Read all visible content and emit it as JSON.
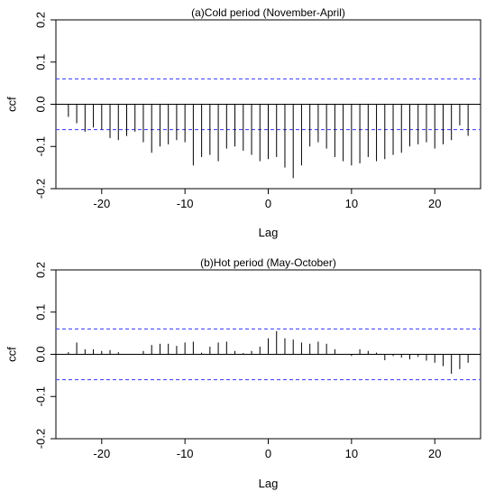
{
  "chart_data": [
    {
      "type": "bar",
      "title": "(a)Cold period (November-April)",
      "xlabel": "Lag",
      "ylabel": "ccf",
      "xlim": [
        -25.5,
        25.5
      ],
      "ylim": [
        -0.2,
        0.2
      ],
      "xticks": [
        -20,
        -10,
        0,
        10,
        20
      ],
      "yticks": [
        -0.2,
        -0.1,
        0.0,
        0.1,
        0.2
      ],
      "xtick_labels": [
        "-20",
        "-10",
        "0",
        "10",
        "20"
      ],
      "ytick_labels": [
        "-0.2",
        "-0.1",
        "0.0",
        "0.1",
        "0.2"
      ],
      "confidence_band": [
        -0.06,
        0.06
      ],
      "band_color": "#4c4cff",
      "lags": [
        -24,
        -23,
        -22,
        -21,
        -20,
        -19,
        -18,
        -17,
        -16,
        -15,
        -14,
        -13,
        -12,
        -11,
        -10,
        -9,
        -8,
        -7,
        -6,
        -5,
        -4,
        -3,
        -2,
        -1,
        0,
        1,
        2,
        3,
        4,
        5,
        6,
        7,
        8,
        9,
        10,
        11,
        12,
        13,
        14,
        15,
        16,
        17,
        18,
        19,
        20,
        21,
        22,
        23,
        24
      ],
      "values": [
        -0.03,
        -0.045,
        -0.065,
        -0.055,
        -0.06,
        -0.08,
        -0.085,
        -0.075,
        -0.065,
        -0.09,
        -0.115,
        -0.1,
        -0.095,
        -0.085,
        -0.09,
        -0.145,
        -0.125,
        -0.12,
        -0.135,
        -0.105,
        -0.1,
        -0.11,
        -0.12,
        -0.135,
        -0.13,
        -0.125,
        -0.15,
        -0.175,
        -0.145,
        -0.1,
        -0.09,
        -0.105,
        -0.125,
        -0.135,
        -0.145,
        -0.14,
        -0.125,
        -0.135,
        -0.13,
        -0.12,
        -0.115,
        -0.1,
        -0.095,
        -0.09,
        -0.105,
        -0.095,
        -0.085,
        -0.05,
        -0.075
      ]
    },
    {
      "type": "bar",
      "title": "(b)Hot period (May-October)",
      "xlabel": "Lag",
      "ylabel": "ccf",
      "xlim": [
        -25.5,
        25.5
      ],
      "ylim": [
        -0.2,
        0.2
      ],
      "xticks": [
        -20,
        -10,
        0,
        10,
        20
      ],
      "yticks": [
        -0.2,
        -0.1,
        0.0,
        0.1,
        0.2
      ],
      "xtick_labels": [
        "-20",
        "-10",
        "0",
        "10",
        "20"
      ],
      "ytick_labels": [
        "-0.2",
        "-0.1",
        "0.0",
        "0.1",
        "0.2"
      ],
      "confidence_band": [
        -0.06,
        0.06
      ],
      "band_color": "#4c4cff",
      "lags": [
        -24,
        -23,
        -22,
        -21,
        -20,
        -19,
        -18,
        -17,
        -16,
        -15,
        -14,
        -13,
        -12,
        -11,
        -10,
        -9,
        -8,
        -7,
        -6,
        -5,
        -4,
        -3,
        -2,
        -1,
        0,
        1,
        2,
        3,
        4,
        5,
        6,
        7,
        8,
        9,
        10,
        11,
        12,
        13,
        14,
        15,
        16,
        17,
        18,
        19,
        20,
        21,
        22,
        23,
        24
      ],
      "values": [
        0.005,
        0.028,
        0.012,
        0.012,
        0.008,
        0.01,
        0.005,
        0.0,
        0.0,
        0.008,
        0.022,
        0.025,
        0.025,
        0.02,
        0.028,
        0.03,
        0.004,
        0.018,
        0.028,
        0.03,
        0.008,
        0.003,
        0.008,
        0.018,
        0.038,
        0.055,
        0.038,
        0.035,
        0.028,
        0.025,
        0.03,
        0.025,
        0.012,
        0.0,
        -0.004,
        0.012,
        0.008,
        0.004,
        -0.014,
        -0.004,
        -0.008,
        -0.012,
        -0.006,
        -0.015,
        -0.02,
        -0.028,
        -0.046,
        -0.035,
        -0.02
      ]
    }
  ]
}
